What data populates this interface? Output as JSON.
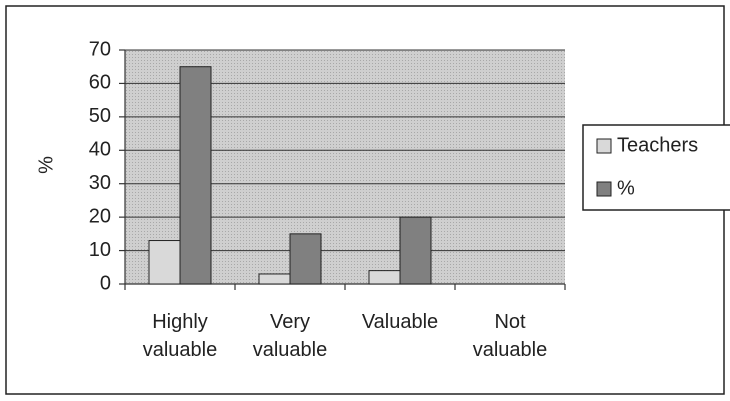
{
  "chart_data": {
    "type": "bar",
    "y_label": "%",
    "categories": [
      "Highly valuable",
      "Very valuable",
      "Valuable",
      "Not valuable"
    ],
    "series": [
      {
        "name": "Teachers",
        "color": "#d9d9d9",
        "values": [
          13,
          3,
          4,
          0
        ]
      },
      {
        "name": "%",
        "color": "#808080",
        "values": [
          65,
          15,
          20,
          0
        ]
      }
    ],
    "ylim": [
      0,
      70
    ],
    "yticks": [
      0,
      10,
      20,
      30,
      40,
      50,
      60,
      70
    ],
    "grid": true,
    "legend": "right"
  }
}
